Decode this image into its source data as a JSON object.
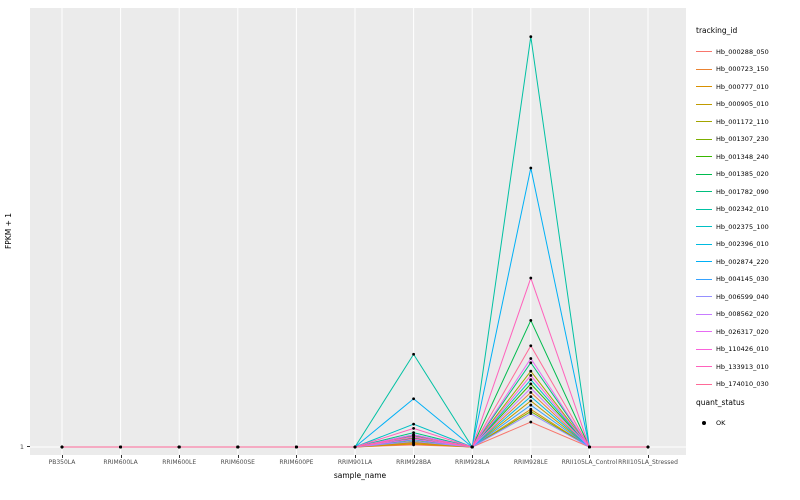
{
  "y_axis": {
    "label": "FPKM + 1",
    "tick": "1"
  },
  "x_axis": {
    "label": "sample_name"
  },
  "legend": {
    "tracking_title": "tracking_id",
    "quant_title": "quant_status",
    "quant_items": [
      {
        "label": "OK"
      }
    ]
  },
  "chart_data": {
    "type": "line",
    "title": "",
    "xlabel": "sample_name",
    "ylabel": "FPKM + 1",
    "ylim": [
      1,
      1000
    ],
    "y_ticks_shown": [
      "1"
    ],
    "panel_bg": "#EBEBEB",
    "grid": "white vertical major gridlines per category, baseline gridline at y=1",
    "legend_position": "right",
    "point_color": "#000000",
    "point_meaning": "quant_status OK",
    "categories": [
      "PB350LA",
      "RRIM600LA",
      "RRIM600LE",
      "RRIM600SE",
      "RRIM600PE",
      "RRIM901LA",
      "RRIM928BA",
      "RRIM928LA",
      "RRIM928LE",
      "RRII105LA_Control",
      "RRII105LA_Stressed"
    ],
    "series": [
      {
        "name": "Hb_000288_050",
        "color": "#F8766D",
        "values": [
          1,
          1,
          1,
          1,
          1,
          1,
          6,
          1,
          60,
          1,
          1
        ]
      },
      {
        "name": "Hb_000723_150",
        "color": "#EA8331",
        "values": [
          1,
          1,
          1,
          1,
          1,
          1,
          10,
          1,
          130,
          1,
          1
        ]
      },
      {
        "name": "Hb_000777_010",
        "color": "#D89000",
        "values": [
          1,
          1,
          1,
          1,
          1,
          1,
          8,
          1,
          90,
          1,
          1
        ]
      },
      {
        "name": "Hb_000905_010",
        "color": "#C09B00",
        "values": [
          1,
          1,
          1,
          1,
          1,
          1,
          12,
          1,
          110,
          1,
          1
        ]
      },
      {
        "name": "Hb_001172_110",
        "color": "#A3A500",
        "values": [
          1,
          1,
          1,
          1,
          1,
          1,
          18,
          1,
          180,
          1,
          1
        ]
      },
      {
        "name": "Hb_001307_230",
        "color": "#7CAE00",
        "values": [
          1,
          1,
          1,
          1,
          1,
          1,
          15,
          1,
          85,
          1,
          1
        ]
      },
      {
        "name": "Hb_001348_240",
        "color": "#39B600",
        "values": [
          1,
          1,
          1,
          1,
          1,
          1,
          22,
          1,
          150,
          1,
          1
        ]
      },
      {
        "name": "Hb_001385_020",
        "color": "#00BB4E",
        "values": [
          1,
          1,
          1,
          1,
          1,
          1,
          28,
          1,
          300,
          1,
          1
        ]
      },
      {
        "name": "Hb_001782_090",
        "color": "#00BF7D",
        "values": [
          1,
          1,
          1,
          1,
          1,
          1,
          35,
          1,
          200,
          1,
          1
        ]
      },
      {
        "name": "Hb_002342_010",
        "color": "#00C1A3",
        "values": [
          1,
          1,
          1,
          1,
          1,
          1,
          220,
          1,
          970,
          1,
          1
        ]
      },
      {
        "name": "Hb_002375_100",
        "color": "#00BFC4",
        "values": [
          1,
          1,
          1,
          1,
          1,
          1,
          55,
          1,
          160,
          1,
          1
        ]
      },
      {
        "name": "Hb_002396_010",
        "color": "#00BAE0",
        "values": [
          1,
          1,
          1,
          1,
          1,
          1,
          30,
          1,
          120,
          1,
          1
        ]
      },
      {
        "name": "Hb_002874_220",
        "color": "#00B0F6",
        "values": [
          1,
          1,
          1,
          1,
          1,
          1,
          115,
          1,
          660,
          1,
          1
        ]
      },
      {
        "name": "Hb_004145_030",
        "color": "#35A2FF",
        "values": [
          1,
          1,
          1,
          1,
          1,
          1,
          18,
          1,
          100,
          1,
          1
        ]
      },
      {
        "name": "Hb_006599_040",
        "color": "#9590FF",
        "values": [
          1,
          1,
          1,
          1,
          1,
          1,
          14,
          1,
          80,
          1,
          1
        ]
      },
      {
        "name": "Hb_008562_020",
        "color": "#C77CFF",
        "values": [
          1,
          1,
          1,
          1,
          1,
          1,
          24,
          1,
          140,
          1,
          1
        ]
      },
      {
        "name": "Hb_026317_020",
        "color": "#E76BF3",
        "values": [
          1,
          1,
          1,
          1,
          1,
          1,
          30,
          1,
          210,
          1,
          1
        ]
      },
      {
        "name": "Hb_110426_010",
        "color": "#FA62DB",
        "values": [
          1,
          1,
          1,
          1,
          1,
          1,
          20,
          1,
          170,
          1,
          1
        ]
      },
      {
        "name": "Hb_133913_010",
        "color": "#FF62BC",
        "values": [
          1,
          1,
          1,
          1,
          1,
          1,
          45,
          1,
          400,
          1,
          1
        ]
      },
      {
        "name": "Hb_174010_030",
        "color": "#FF6A98",
        "values": [
          1,
          1,
          1,
          1,
          1,
          1,
          26,
          1,
          240,
          1,
          1
        ]
      }
    ]
  }
}
